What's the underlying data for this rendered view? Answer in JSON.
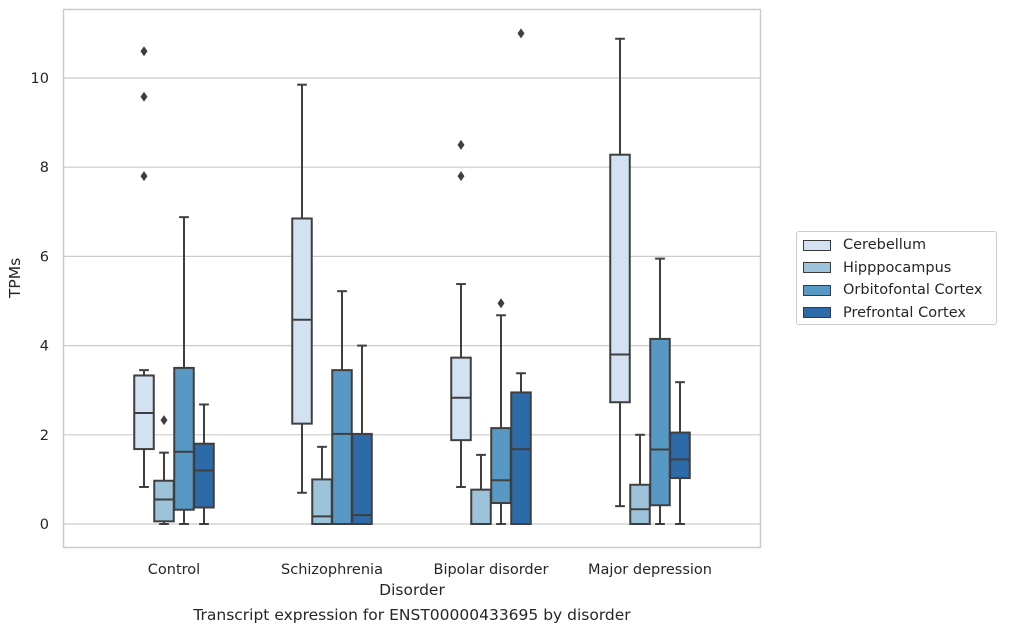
{
  "caption": "Transcript expression for ENST00000433695 by disorder",
  "chart_data": {
    "type": "box",
    "xlabel": "Disorder",
    "ylabel": "TPMs",
    "ylim": [
      -0.5,
      11.5
    ],
    "yticks": [
      0,
      2,
      4,
      6,
      8,
      10
    ],
    "grid": "horizontal",
    "legend_position": "right",
    "categories": [
      "Control",
      "Schizophrenia",
      "Bipolar disorder",
      "Major depression"
    ],
    "series": [
      {
        "name": "Cerebellum",
        "color": "#d2e2f2",
        "boxes": [
          {
            "whisker_low": 0.83,
            "q1": 1.68,
            "median": 2.49,
            "q3": 3.33,
            "whisker_high": 3.45,
            "outliers": [
              7.8,
              9.58,
              10.6
            ]
          },
          {
            "whisker_low": 0.7,
            "q1": 2.25,
            "median": 4.58,
            "q3": 6.85,
            "whisker_high": 9.85,
            "outliers": []
          },
          {
            "whisker_low": 0.83,
            "q1": 1.88,
            "median": 2.83,
            "q3": 3.73,
            "whisker_high": 5.38,
            "outliers": [
              7.8,
              8.5
            ]
          },
          {
            "whisker_low": 0.4,
            "q1": 2.73,
            "median": 3.8,
            "q3": 8.28,
            "whisker_high": 10.88,
            "outliers": []
          }
        ]
      },
      {
        "name": "Hipppocampus",
        "color": "#9cc3da",
        "boxes": [
          {
            "whisker_low": 0.0,
            "q1": 0.06,
            "median": 0.55,
            "q3": 0.97,
            "whisker_high": 1.6,
            "outliers": [
              2.33
            ]
          },
          {
            "whisker_low": 0.0,
            "q1": 0.0,
            "median": 0.17,
            "q3": 1.0,
            "whisker_high": 1.73,
            "outliers": []
          },
          {
            "whisker_low": 0.0,
            "q1": 0.0,
            "median": 0.0,
            "q3": 0.77,
            "whisker_high": 1.55,
            "outliers": []
          },
          {
            "whisker_low": 0.0,
            "q1": 0.0,
            "median": 0.33,
            "q3": 0.88,
            "whisker_high": 2.0,
            "outliers": []
          }
        ]
      },
      {
        "name": "Orbitofontal Cortex",
        "color": "#5898c4",
        "boxes": [
          {
            "whisker_low": 0.0,
            "q1": 0.32,
            "median": 1.62,
            "q3": 3.5,
            "whisker_high": 6.88,
            "outliers": []
          },
          {
            "whisker_low": 0.0,
            "q1": 0.0,
            "median": 2.02,
            "q3": 3.45,
            "whisker_high": 5.22,
            "outliers": []
          },
          {
            "whisker_low": 0.0,
            "q1": 0.47,
            "median": 0.98,
            "q3": 2.15,
            "whisker_high": 4.68,
            "outliers": [
              4.95
            ]
          },
          {
            "whisker_low": 0.0,
            "q1": 0.42,
            "median": 1.67,
            "q3": 4.15,
            "whisker_high": 5.95,
            "outliers": []
          }
        ]
      },
      {
        "name": "Prefrontal Cortex",
        "color": "#2d6aa8",
        "boxes": [
          {
            "whisker_low": 0.0,
            "q1": 0.37,
            "median": 1.2,
            "q3": 1.8,
            "whisker_high": 2.68,
            "outliers": []
          },
          {
            "whisker_low": 0.0,
            "q1": 0.0,
            "median": 0.2,
            "q3": 2.02,
            "whisker_high": 4.0,
            "outliers": []
          },
          {
            "whisker_low": 0.0,
            "q1": 0.0,
            "median": 1.68,
            "q3": 2.95,
            "whisker_high": 3.38,
            "outliers": [
              11.0
            ]
          },
          {
            "whisker_low": 0.0,
            "q1": 1.03,
            "median": 1.45,
            "q3": 2.05,
            "whisker_high": 3.18,
            "outliers": []
          }
        ]
      }
    ]
  }
}
